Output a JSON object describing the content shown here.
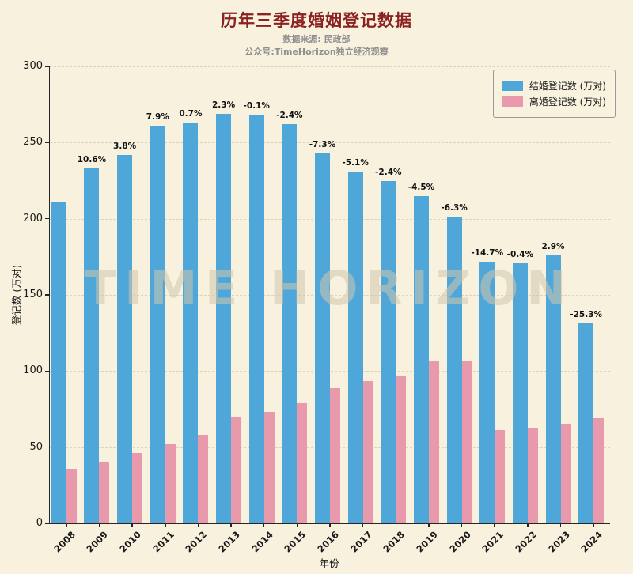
{
  "page": {
    "title": "历年三季度婚姻登记数据",
    "subtitle1": "数据来源: 民政部",
    "subtitle2": "公众号:TimeHorizon独立经济观察",
    "watermark": "TIME HORIZON"
  },
  "colors": {
    "background": "#f8f1de",
    "title": "#8b2222",
    "marriage_bar": "#4fa6d8",
    "divorce_bar": "#e899ab",
    "grid": "#ddd3bb"
  },
  "chart_data": {
    "type": "bar",
    "title": "历年三季度婚姻登记数据",
    "xlabel": "年份",
    "ylabel": "登记数 (万对)",
    "ylim": [
      0,
      300
    ],
    "yticks": [
      0,
      50,
      100,
      150,
      200,
      250,
      300
    ],
    "grid": "horizontal-dashed",
    "legend_position": "upper right",
    "categories": [
      "2008",
      "2009",
      "2010",
      "2011",
      "2012",
      "2013",
      "2014",
      "2015",
      "2016",
      "2017",
      "2018",
      "2019",
      "2020",
      "2021",
      "2022",
      "2023",
      "2024"
    ],
    "series": [
      {
        "name": "结婚登记数 (万对)",
        "color": "#4fa6d8",
        "values": [
          211,
          233,
          242,
          261,
          263,
          269,
          268.5,
          262,
          243,
          231,
          225,
          215,
          201.5,
          172,
          171,
          176,
          131.5
        ]
      },
      {
        "name": "离婚登记数 (万对)",
        "color": "#e899ab",
        "values": [
          36,
          40.5,
          46,
          52,
          58,
          69.5,
          73,
          79,
          89,
          93.5,
          96.5,
          106.5,
          107,
          61.5,
          63,
          65.5,
          69
        ]
      }
    ],
    "bar_labels": {
      "series": "结婚登记数 (万对)",
      "values": [
        "",
        "10.6%",
        "3.8%",
        "7.9%",
        "0.7%",
        "2.3%",
        "-0.1%",
        "-2.4%",
        "-7.3%",
        "-5.1%",
        "-2.4%",
        "-4.5%",
        "-6.3%",
        "-14.7%",
        "-0.4%",
        "2.9%",
        "-25.3%"
      ]
    }
  }
}
